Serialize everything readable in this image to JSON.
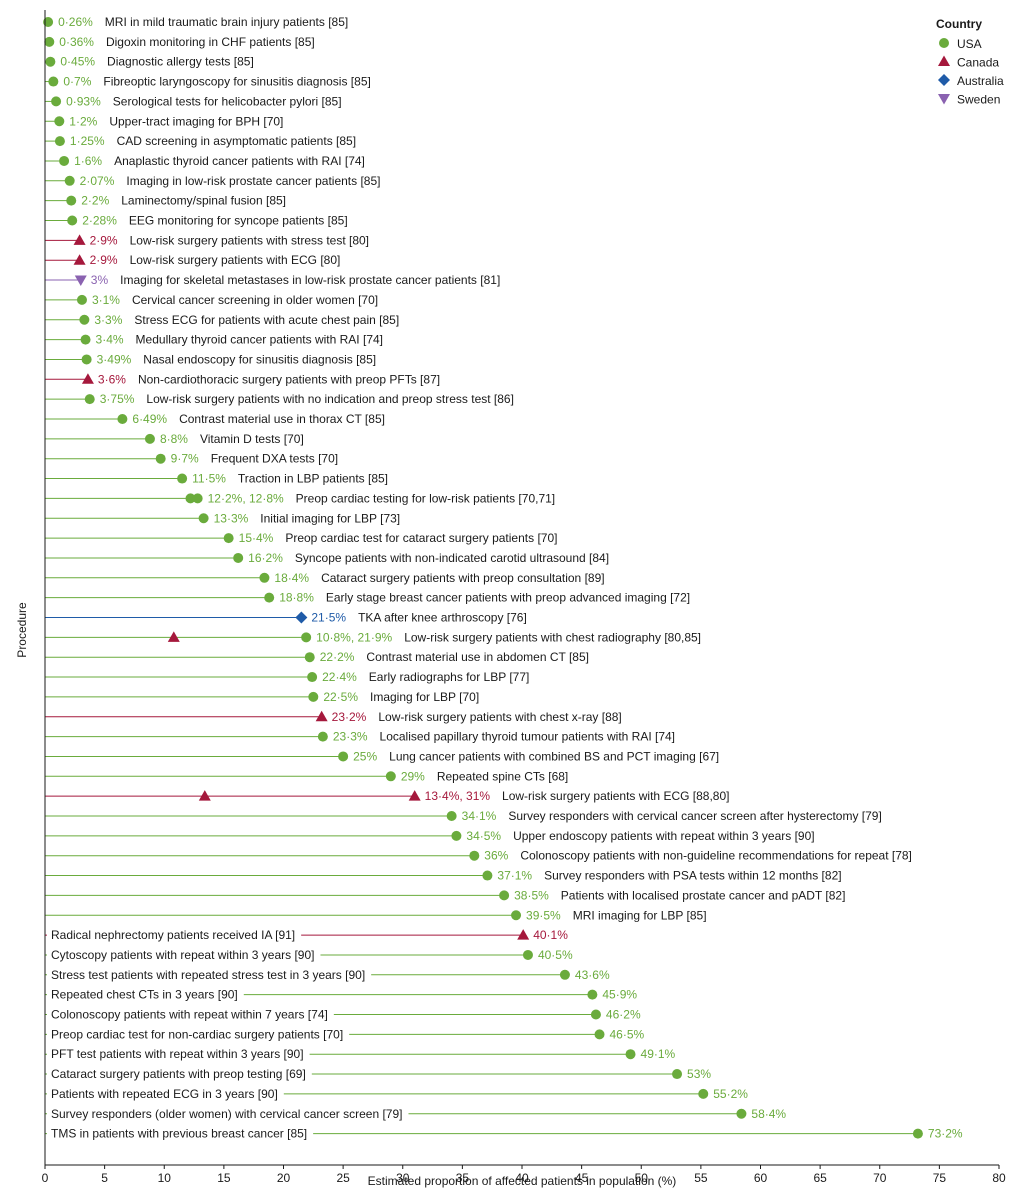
{
  "chart_data": {
    "type": "scatter",
    "xlabel": "Estimated proportion of affected patients in population (%)",
    "ylabel": "Procedure",
    "xlim": [
      0,
      80
    ],
    "x_ticks": [
      "0",
      "5",
      "10",
      "15",
      "20",
      "25",
      "30",
      "35",
      "40",
      "45",
      "50",
      "55",
      "60",
      "65",
      "70",
      "75",
      "80"
    ],
    "legend": {
      "title": "Country",
      "placement": "top-right",
      "entries": [
        {
          "name": "USA",
          "color": "#6aab3c",
          "shape": "circle"
        },
        {
          "name": "Canada",
          "color": "#a5183c",
          "shape": "triangle-up"
        },
        {
          "name": "Australia",
          "color": "#1f5ba8",
          "shape": "diamond"
        },
        {
          "name": "Sweden",
          "color": "#8a62b0",
          "shape": "triangle-down"
        }
      ]
    },
    "rows": [
      {
        "label": "MRI in mild traumatic brain injury patients [85]",
        "value_text": "0·26%",
        "label_side": "right",
        "points": [
          {
            "x": 0.26,
            "country": "USA"
          }
        ]
      },
      {
        "label": "Digoxin monitoring in CHF patients [85]",
        "value_text": "0·36%",
        "label_side": "right",
        "points": [
          {
            "x": 0.36,
            "country": "USA"
          }
        ]
      },
      {
        "label": "Diagnostic allergy tests [85]",
        "value_text": "0·45%",
        "label_side": "right",
        "points": [
          {
            "x": 0.45,
            "country": "USA"
          }
        ]
      },
      {
        "label": "Fibreoptic laryngoscopy for sinusitis diagnosis [85]",
        "value_text": "0·7%",
        "label_side": "right",
        "points": [
          {
            "x": 0.7,
            "country": "USA"
          }
        ]
      },
      {
        "label": "Serological tests for helicobacter pylori [85]",
        "value_text": "0·93%",
        "label_side": "right",
        "points": [
          {
            "x": 0.93,
            "country": "USA"
          }
        ]
      },
      {
        "label": "Upper-tract imaging for BPH [70]",
        "value_text": "1·2%",
        "label_side": "right",
        "points": [
          {
            "x": 1.2,
            "country": "USA"
          }
        ]
      },
      {
        "label": "CAD screening in asymptomatic patients [85]",
        "value_text": "1·25%",
        "label_side": "right",
        "points": [
          {
            "x": 1.25,
            "country": "USA"
          }
        ]
      },
      {
        "label": "Anaplastic thyroid cancer patients with RAI [74]",
        "value_text": "1·6%",
        "label_side": "right",
        "points": [
          {
            "x": 1.6,
            "country": "USA"
          }
        ]
      },
      {
        "label": "Imaging in low-risk prostate cancer patients [85]",
        "value_text": "2·07%",
        "label_side": "right",
        "points": [
          {
            "x": 2.07,
            "country": "USA"
          }
        ]
      },
      {
        "label": "Laminectomy/spinal fusion [85]",
        "value_text": "2·2%",
        "label_side": "right",
        "points": [
          {
            "x": 2.2,
            "country": "USA"
          }
        ]
      },
      {
        "label": "EEG monitoring for syncope patients [85]",
        "value_text": "2·28%",
        "label_side": "right",
        "points": [
          {
            "x": 2.28,
            "country": "USA"
          }
        ]
      },
      {
        "label": "Low-risk surgery patients with stress test [80]",
        "value_text": "2·9%",
        "label_side": "right",
        "points": [
          {
            "x": 2.9,
            "country": "Canada"
          }
        ]
      },
      {
        "label": "Low-risk surgery patients with ECG [80]",
        "value_text": "2·9%",
        "label_side": "right",
        "points": [
          {
            "x": 2.9,
            "country": "Canada"
          }
        ]
      },
      {
        "label": "Imaging for skeletal metastases in low-risk prostate cancer patients  [81]",
        "value_text": "3%",
        "label_side": "right",
        "points": [
          {
            "x": 3.0,
            "country": "Sweden"
          }
        ]
      },
      {
        "label": "Cervical cancer screening in older women [70]",
        "value_text": "3·1%",
        "label_side": "right",
        "points": [
          {
            "x": 3.1,
            "country": "USA"
          }
        ]
      },
      {
        "label": "Stress ECG for patients with acute chest pain [85]",
        "value_text": "3·3%",
        "label_side": "right",
        "points": [
          {
            "x": 3.3,
            "country": "USA"
          }
        ]
      },
      {
        "label": "Medullary thyroid cancer patients with RAI [74]",
        "value_text": "3·4%",
        "label_side": "right",
        "points": [
          {
            "x": 3.4,
            "country": "USA"
          }
        ]
      },
      {
        "label": "Nasal endoscopy for sinusitis diagnosis [85]",
        "value_text": "3·49%",
        "label_side": "right",
        "points": [
          {
            "x": 3.49,
            "country": "USA"
          }
        ]
      },
      {
        "label": "Non-cardiothoracic surgery patients with preop PFTs  [87]",
        "value_text": "3·6%",
        "label_side": "right",
        "points": [
          {
            "x": 3.6,
            "country": "Canada"
          }
        ]
      },
      {
        "label": "Low-risk surgery patients with no indication and preop stress test [86]",
        "value_text": "3·75%",
        "label_side": "right",
        "points": [
          {
            "x": 3.75,
            "country": "USA"
          }
        ]
      },
      {
        "label": "Contrast material use in thorax CT [85]",
        "value_text": "6·49%",
        "label_side": "right",
        "points": [
          {
            "x": 6.49,
            "country": "USA"
          }
        ]
      },
      {
        "label": "Vitamin D tests [70]",
        "value_text": "8·8%",
        "label_side": "right",
        "points": [
          {
            "x": 8.8,
            "country": "USA"
          }
        ]
      },
      {
        "label": "Frequent DXA tests [70]",
        "value_text": "9·7%",
        "label_side": "right",
        "points": [
          {
            "x": 9.7,
            "country": "USA"
          }
        ]
      },
      {
        "label": "Traction in LBP patients [85]",
        "value_text": "11·5%",
        "label_side": "right",
        "points": [
          {
            "x": 11.5,
            "country": "USA"
          }
        ]
      },
      {
        "label": "Preop cardiac testing for low-risk patients [70,71]",
        "value_text": "12·2%,  12·8%",
        "label_side": "right",
        "points": [
          {
            "x": 12.2,
            "country": "USA"
          },
          {
            "x": 12.8,
            "country": "USA"
          }
        ]
      },
      {
        "label": "Initial imaging for LBP [73]",
        "value_text": "13·3%",
        "label_side": "right",
        "points": [
          {
            "x": 13.3,
            "country": "USA"
          }
        ]
      },
      {
        "label": "Preop cardiac test for cataract surgery patients [70]",
        "value_text": "15·4%",
        "label_side": "right",
        "points": [
          {
            "x": 15.4,
            "country": "USA"
          }
        ]
      },
      {
        "label": "Syncope patients with non-indicated carotid ultrasound [84]",
        "value_text": "16·2%",
        "label_side": "right",
        "points": [
          {
            "x": 16.2,
            "country": "USA"
          }
        ]
      },
      {
        "label": "Cataract surgery patients with preop consultation [89]",
        "value_text": "18·4%",
        "label_side": "right",
        "points": [
          {
            "x": 18.4,
            "country": "USA"
          }
        ]
      },
      {
        "label": "Early stage breast cancer patients with preop advanced imaging [72]",
        "value_text": "18·8%",
        "label_side": "right",
        "points": [
          {
            "x": 18.8,
            "country": "USA"
          }
        ]
      },
      {
        "label": "TKA after knee arthroscopy [76]",
        "value_text": "21·5%",
        "label_side": "right",
        "points": [
          {
            "x": 21.5,
            "country": "Australia"
          }
        ]
      },
      {
        "label": "Low-risk surgery patients with chest radiography [80,85]",
        "value_text": "10·8%,  21·9%",
        "label_side": "right",
        "points": [
          {
            "x": 10.8,
            "country": "Canada"
          },
          {
            "x": 21.9,
            "country": "USA"
          }
        ]
      },
      {
        "label": "Contrast material use in abdomen CT [85]",
        "value_text": "22·2%",
        "label_side": "right",
        "points": [
          {
            "x": 22.2,
            "country": "USA"
          }
        ]
      },
      {
        "label": "Early radiographs for LBP [77]",
        "value_text": "22·4%",
        "label_side": "right",
        "points": [
          {
            "x": 22.4,
            "country": "USA"
          }
        ]
      },
      {
        "label": "Imaging for LBP [70]",
        "value_text": "22·5%",
        "label_side": "right",
        "points": [
          {
            "x": 22.5,
            "country": "USA"
          }
        ]
      },
      {
        "label": "Low-risk surgery patients with chest x-ray [88]",
        "value_text": "23·2%",
        "label_side": "right",
        "points": [
          {
            "x": 23.2,
            "country": "Canada"
          }
        ]
      },
      {
        "label": "Localised papillary thyroid tumour patients with RAI [74]",
        "value_text": "23·3%",
        "label_side": "right",
        "points": [
          {
            "x": 23.3,
            "country": "USA"
          }
        ]
      },
      {
        "label": "Lung cancer patients with combined BS and PCT imaging [67]",
        "value_text": "25%",
        "label_side": "right",
        "points": [
          {
            "x": 25.0,
            "country": "USA"
          }
        ]
      },
      {
        "label": "Repeated spine CTs [68]",
        "value_text": "29%",
        "label_side": "right",
        "points": [
          {
            "x": 29.0,
            "country": "USA"
          }
        ]
      },
      {
        "label": "Low-risk surgery patients with ECG [88,80]",
        "value_text": "13·4%,  31%",
        "label_side": "right",
        "points": [
          {
            "x": 13.4,
            "country": "Canada"
          },
          {
            "x": 31.0,
            "country": "Canada"
          }
        ]
      },
      {
        "label": "Survey responders with cervical cancer screen after hysterectomy [79]",
        "value_text": "34·1%",
        "label_side": "right",
        "points": [
          {
            "x": 34.1,
            "country": "USA"
          }
        ]
      },
      {
        "label": "Upper endoscopy patients with repeat within 3 years [90]",
        "value_text": "34·5%",
        "label_side": "right",
        "points": [
          {
            "x": 34.5,
            "country": "USA"
          }
        ]
      },
      {
        "label": "Colonoscopy patients with non-guideline recommendations for repeat [78]",
        "value_text": "36%",
        "label_side": "right",
        "points": [
          {
            "x": 36.0,
            "country": "USA"
          }
        ]
      },
      {
        "label": "Survey responders with PSA tests within 12 months [82]",
        "value_text": "37·1%",
        "label_side": "right",
        "points": [
          {
            "x": 37.1,
            "country": "USA"
          }
        ]
      },
      {
        "label": "Patients with localised prostate cancer and pADT [82]",
        "value_text": "38·5%",
        "label_side": "right",
        "points": [
          {
            "x": 38.5,
            "country": "USA"
          }
        ]
      },
      {
        "label": "MRI imaging for LBP [85]",
        "value_text": "39·5%",
        "label_side": "right",
        "points": [
          {
            "x": 39.5,
            "country": "USA"
          }
        ]
      },
      {
        "label": "Radical nephrectomy patients received IA [91]",
        "value_text": "40·1%",
        "label_side": "left",
        "points": [
          {
            "x": 40.1,
            "country": "Canada"
          }
        ]
      },
      {
        "label": "Cytoscopy patients with repeat within 3 years [90]",
        "value_text": "40·5%",
        "label_side": "left",
        "points": [
          {
            "x": 40.5,
            "country": "USA"
          }
        ]
      },
      {
        "label": "Stress test patients with repeated stress test in 3 years [90]",
        "value_text": "43·6%",
        "label_side": "left",
        "points": [
          {
            "x": 43.6,
            "country": "USA"
          }
        ]
      },
      {
        "label": "Repeated chest CTs in 3 years [90]",
        "value_text": "45·9%",
        "label_side": "left",
        "points": [
          {
            "x": 45.9,
            "country": "USA"
          }
        ]
      },
      {
        "label": "Colonoscopy patients with repeat within 7 years [74]",
        "value_text": "46·2%",
        "label_side": "left",
        "points": [
          {
            "x": 46.2,
            "country": "USA"
          }
        ]
      },
      {
        "label": "Preop cardiac test for non-cardiac surgery patients [70]",
        "value_text": "46·5%",
        "label_side": "left",
        "points": [
          {
            "x": 46.5,
            "country": "USA"
          }
        ]
      },
      {
        "label": "PFT test patients with repeat within 3 years [90]",
        "value_text": "49·1%",
        "label_side": "left",
        "points": [
          {
            "x": 49.1,
            "country": "USA"
          }
        ]
      },
      {
        "label": "Cataract surgery patients with preop testing [69]",
        "value_text": "53%",
        "label_side": "left",
        "points": [
          {
            "x": 53.0,
            "country": "USA"
          }
        ]
      },
      {
        "label": "Patients with repeated ECG in 3 years [90]",
        "value_text": "55·2%",
        "label_side": "left",
        "points": [
          {
            "x": 55.2,
            "country": "USA"
          }
        ]
      },
      {
        "label": "Survey responders (older women) with cervical cancer screen [79]",
        "value_text": "58·4%",
        "label_side": "left",
        "points": [
          {
            "x": 58.4,
            "country": "USA"
          }
        ]
      },
      {
        "label": "TMS in patients with previous breast cancer [85]",
        "value_text": "73·2%",
        "label_side": "left",
        "points": [
          {
            "x": 73.2,
            "country": "USA"
          }
        ]
      }
    ]
  }
}
